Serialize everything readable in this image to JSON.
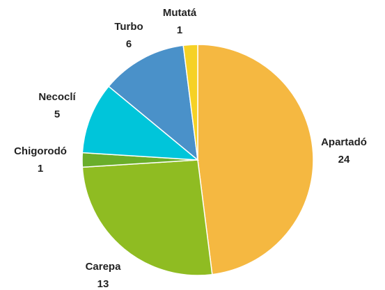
{
  "chart_data": {
    "type": "pie",
    "categories": [
      "Apartadó",
      "Carepa",
      "Chigorodó",
      "Necoclí",
      "Turbo",
      "Mutatá"
    ],
    "values": [
      24,
      13,
      1,
      5,
      6,
      1
    ],
    "colors": [
      "#F5B841",
      "#8FBC22",
      "#6AAE2A",
      "#00C5DA",
      "#4A91C9",
      "#F6D125"
    ]
  }
}
